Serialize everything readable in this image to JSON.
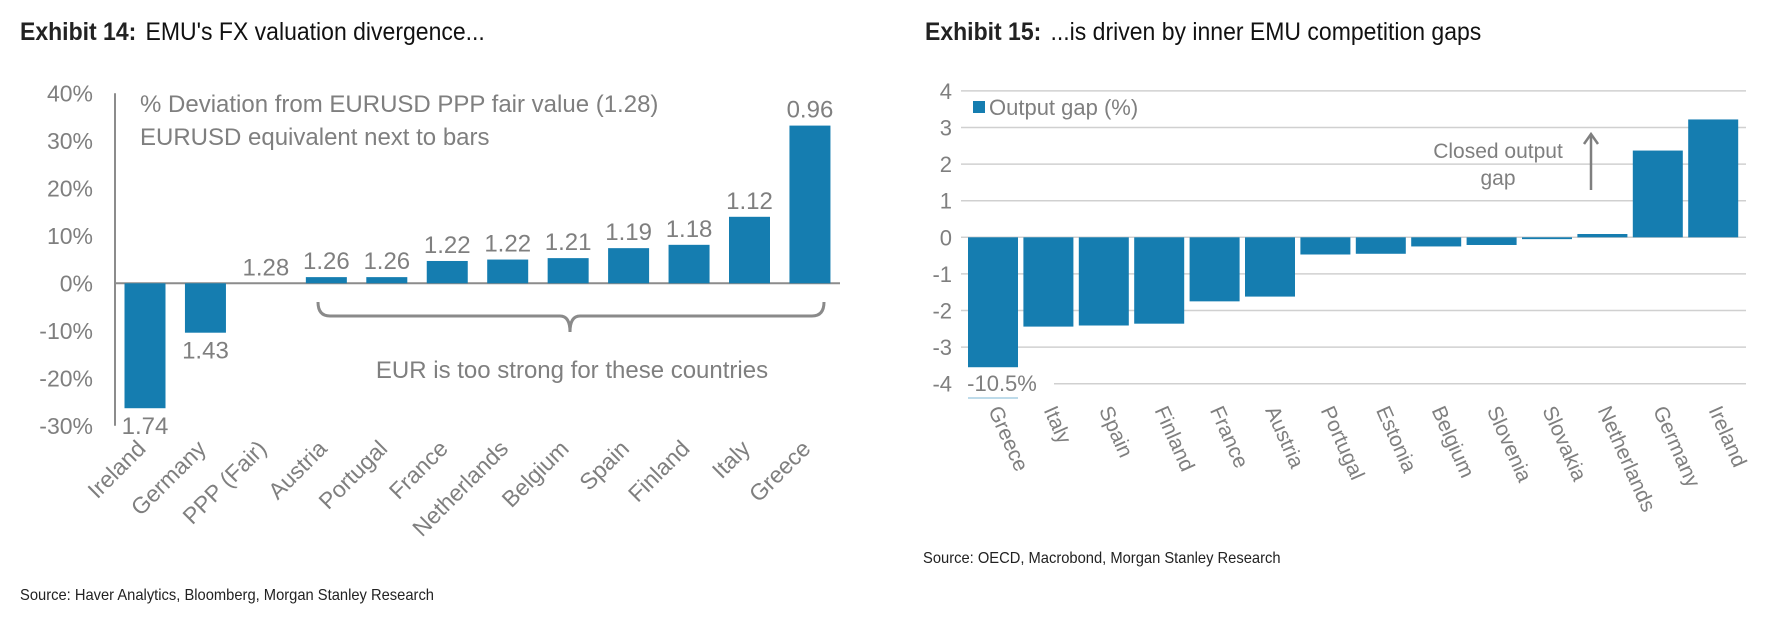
{
  "exhibits": [
    {
      "label": "Exhibit 14:",
      "title": "EMU's FX valuation divergence...",
      "source": "Source: Haver Analytics, Bloomberg, Morgan Stanley Research"
    },
    {
      "label": "Exhibit 15:",
      "title": "...is driven by inner EMU competition gaps",
      "source": "Source: OECD, Macrobond, Morgan Stanley Research"
    }
  ],
  "colors": {
    "bar": "#157db0",
    "text_gray": "#7f7f7f",
    "grid": "#d0d0d0",
    "axis": "#8c8c8c"
  },
  "chart_data": [
    {
      "type": "bar",
      "title": "EMU's FX valuation divergence...",
      "annotation_lines": [
        "% Deviation from EURUSD PPP fair value (1.28)",
        "EURUSD equivalent next to bars"
      ],
      "bracket_label": "EUR is too strong for these countries",
      "bracket_span": [
        "Austria",
        "Greece"
      ],
      "categories": [
        "Ireland",
        "Germany",
        "PPP (Fair)",
        "Austria",
        "Portugal",
        "France",
        "Netherlands",
        "Belgium",
        "Spain",
        "Finland",
        "Italy",
        "Greece"
      ],
      "values": [
        -26.3,
        -10.4,
        0,
        1.3,
        1.3,
        4.7,
        5.0,
        5.3,
        7.4,
        8.1,
        14.0,
        33.2
      ],
      "data_labels": [
        "1.74",
        "1.43",
        "1.28",
        "1.26",
        "1.26",
        "1.22",
        "1.22",
        "1.21",
        "1.19",
        "1.18",
        "1.12",
        "0.96"
      ],
      "yticks": [
        40,
        30,
        20,
        10,
        0,
        -10,
        -20,
        -30
      ],
      "ytick_labels": [
        "40%",
        "30%",
        "20%",
        "10%",
        "0%",
        "-10%",
        "-20%",
        "-30%"
      ],
      "ylim": [
        -30,
        40
      ],
      "xlabel": "",
      "ylabel": "",
      "grid": false
    },
    {
      "type": "bar",
      "title": "...is driven by inner EMU competition gaps",
      "legend": {
        "label": "Output gap (%)",
        "position": "top-left"
      },
      "annotation": [
        "Closed output",
        "gap"
      ],
      "categories": [
        "Greece",
        "Italy",
        "Spain",
        "Finland",
        "France",
        "Austria",
        "Portugal",
        "Estonia",
        "Belgium",
        "Slovenia",
        "Slovakia",
        "Netherlands",
        "Germany",
        "Ireland"
      ],
      "values": [
        -10.5,
        -2.44,
        -2.41,
        -2.36,
        -1.75,
        -1.62,
        -0.47,
        -0.45,
        -0.25,
        -0.21,
        -0.05,
        0.09,
        2.37,
        3.22
      ],
      "clipped_label": {
        "category": "Greece",
        "text": "-10.5%"
      },
      "yticks": [
        4,
        3,
        2,
        1,
        0,
        -1,
        -2,
        -3,
        -4
      ],
      "ytick_labels": [
        "4",
        "3",
        "2",
        "1",
        "0",
        "-1",
        "-2",
        "-3",
        "-4"
      ],
      "ylim": [
        -4,
        4
      ],
      "xlabel": "",
      "ylabel": "",
      "grid": true
    }
  ]
}
